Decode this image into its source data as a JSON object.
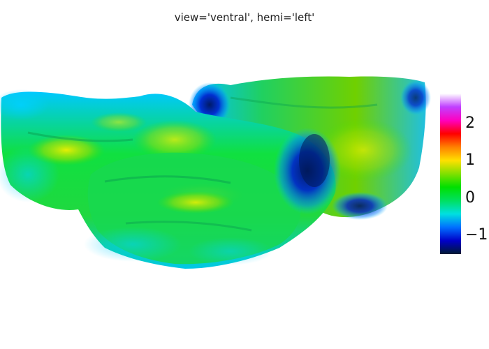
{
  "title": "view='ventral', hemi='left'",
  "colorbar": {
    "min": -1.5,
    "max": 2.8,
    "ticks": [
      {
        "value": 2,
        "label": "2"
      },
      {
        "value": 1,
        "label": "1"
      },
      {
        "value": 0,
        "label": "0"
      },
      {
        "value": -1,
        "label": "−1"
      }
    ],
    "colors": [
      "#001a33",
      "#0000c8",
      "#0070ff",
      "#00e0e0",
      "#00e060",
      "#00e000",
      "#80e000",
      "#ffe000",
      "#ff8000",
      "#ff0000",
      "#ff00c0",
      "#c040ff",
      "#ffffff"
    ]
  }
}
